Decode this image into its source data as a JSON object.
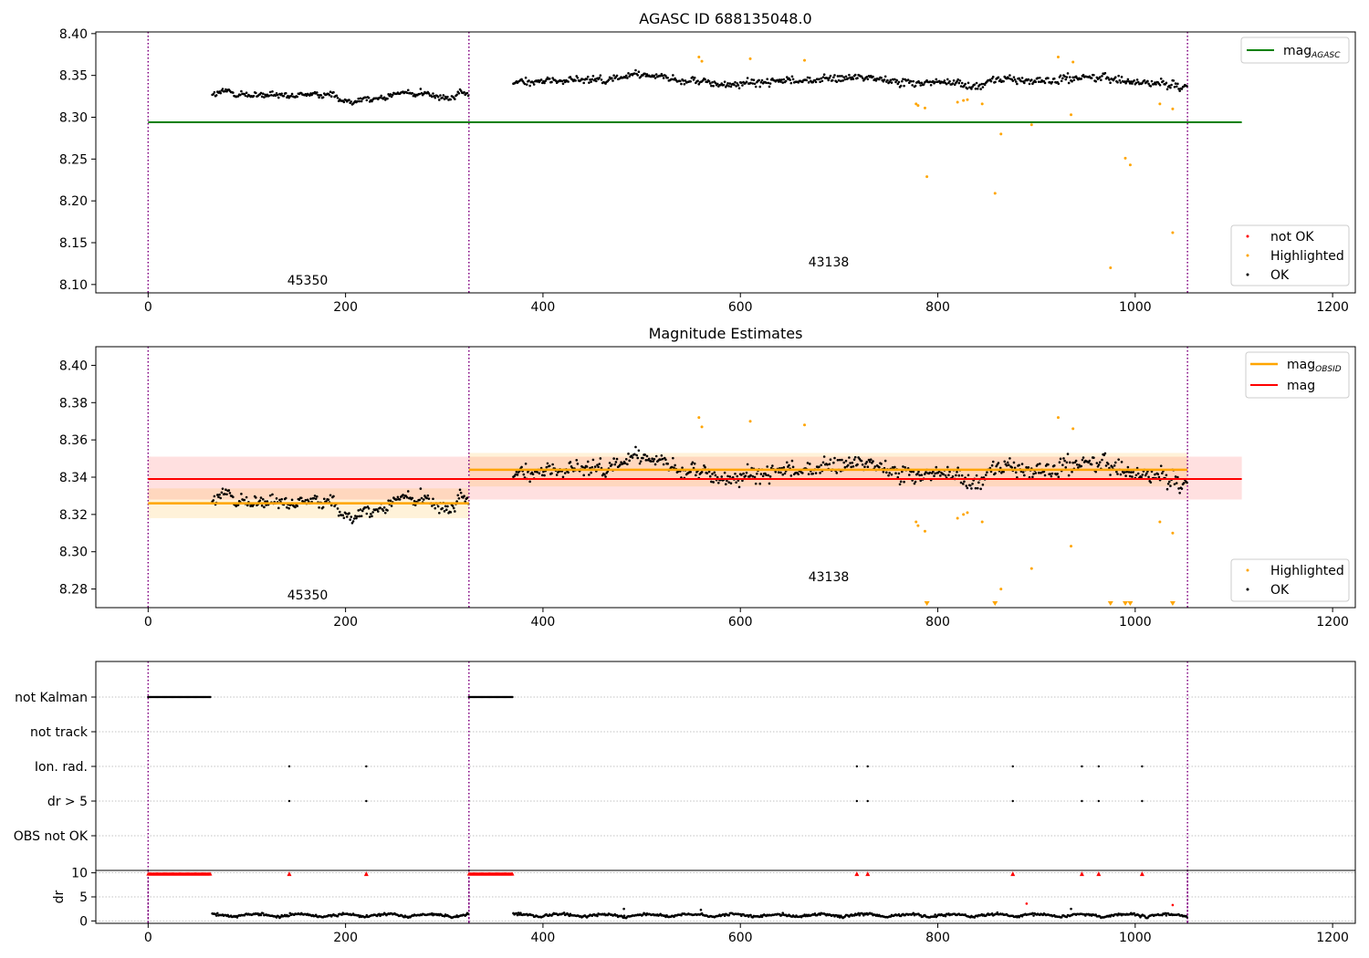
{
  "figure": {
    "top_title": "AGASC ID 688135048.0",
    "mid_title": "Magnitude Estimates"
  },
  "colors": {
    "ok": "#000000",
    "highlighted": "#ffa500",
    "not_ok": "#ff0000",
    "mag_agasc": "#008000",
    "mag_obsid": "#ffa500",
    "mag": "#ff0000",
    "obs_boundary": "#800080",
    "grid": "#b0b0b0"
  },
  "chart_data": [
    {
      "type": "scatter",
      "title": "AGASC ID 688135048.0",
      "xlim": [
        -53,
        1223
      ],
      "ylim": [
        8.09,
        8.402
      ],
      "x_ticks": [
        0,
        200,
        400,
        600,
        800,
        1000,
        1200
      ],
      "y_ticks": [
        8.1,
        8.15,
        8.2,
        8.25,
        8.3,
        8.35,
        8.4
      ],
      "y_tick_labels": [
        "8.10",
        "8.15",
        "8.20",
        "8.25",
        "8.30",
        "8.35",
        "8.40"
      ],
      "obs_boundaries": [
        0,
        325,
        1053
      ],
      "obs_labels": [
        {
          "text": "45350",
          "x": 162,
          "y": 8.105
        },
        {
          "text": "43138",
          "x": 690,
          "y": 8.126
        }
      ],
      "segments": [
        {
          "x_start": 65,
          "x_end": 325,
          "mean": 8.3255,
          "spread": 0.007
        },
        {
          "x_start": 370,
          "x_end": 1053,
          "mean": 8.344,
          "spread": 0.009
        }
      ],
      "reference_lines": [
        {
          "name": "mag$_{AGASC}$",
          "y": 8.294,
          "x_range": [
            0,
            1108
          ],
          "color": "#008000"
        }
      ],
      "highlighted": [
        [
          558,
          8.372
        ],
        [
          561,
          8.367
        ],
        [
          610,
          8.37
        ],
        [
          665,
          8.368
        ],
        [
          778,
          8.316
        ],
        [
          780,
          8.314
        ],
        [
          787,
          8.311
        ],
        [
          789,
          8.229
        ],
        [
          820,
          8.318
        ],
        [
          826,
          8.32
        ],
        [
          830,
          8.321
        ],
        [
          845,
          8.316
        ],
        [
          858,
          8.209
        ],
        [
          864,
          8.28
        ],
        [
          895,
          8.291
        ],
        [
          922,
          8.372
        ],
        [
          935,
          8.303
        ],
        [
          937,
          8.366
        ],
        [
          975,
          8.12
        ],
        [
          990,
          8.251
        ],
        [
          995,
          8.243
        ],
        [
          1025,
          8.316
        ],
        [
          1038,
          8.31
        ],
        [
          1038,
          8.162
        ]
      ],
      "series": [
        {
          "name": "not OK",
          "color": "#ff0000"
        },
        {
          "name": "Highlighted",
          "color": "#ffa500"
        },
        {
          "name": "OK",
          "color": "#000000"
        }
      ],
      "legend_placement": [
        "top-right",
        "bottom-right"
      ]
    },
    {
      "type": "scatter",
      "title": "Magnitude Estimates",
      "xlim": [
        -53,
        1223
      ],
      "ylim": [
        8.27,
        8.41
      ],
      "x_ticks": [
        0,
        200,
        400,
        600,
        800,
        1000,
        1200
      ],
      "y_ticks": [
        8.28,
        8.3,
        8.32,
        8.34,
        8.36,
        8.38,
        8.4
      ],
      "y_tick_labels": [
        "8.28",
        "8.30",
        "8.32",
        "8.34",
        "8.36",
        "8.38",
        "8.40"
      ],
      "obs_boundaries": [
        0,
        325,
        1053
      ],
      "obs_labels": [
        {
          "text": "45350",
          "x": 162,
          "y": 8.2745
        },
        {
          "text": "43138",
          "x": 690,
          "y": 8.2845
        }
      ],
      "mag": {
        "name": "mag",
        "y": 8.339,
        "band": [
          8.328,
          8.351
        ],
        "x_range": [
          0,
          1108
        ],
        "color": "#ff0000"
      },
      "mag_obsid": [
        {
          "x_range": [
            0,
            325
          ],
          "y": 8.326,
          "band": [
            8.318,
            8.334
          ]
        },
        {
          "x_range": [
            325,
            1053
          ],
          "y": 8.344,
          "band": [
            8.335,
            8.353
          ]
        }
      ],
      "clipped_highlighted_x": [
        789,
        858,
        975,
        990,
        995,
        1038
      ],
      "series": [
        {
          "name": "mag$_{OBSID}$",
          "color": "#ffa500"
        },
        {
          "name": "mag",
          "color": "#ff0000"
        },
        {
          "name": "Highlighted",
          "color": "#ffa500"
        },
        {
          "name": "OK",
          "color": "#000000"
        }
      ],
      "legend_placement": [
        "top-right",
        "bottom-right"
      ]
    },
    {
      "type": "scatter",
      "xlim": [
        -53,
        1223
      ],
      "flag_rows": [
        "not Kalman",
        "not track",
        "Ion. rad.",
        "dr > 5",
        "OBS not OK"
      ],
      "not_kalman_ranges": [
        [
          0,
          63
        ],
        [
          325,
          370
        ]
      ],
      "ion_rad_x": [
        143,
        221,
        718,
        729,
        876,
        946,
        963,
        1007
      ],
      "dr_gt_5_x": [
        143,
        221,
        718,
        729,
        876,
        946,
        963,
        1007
      ],
      "obs_boundaries": [
        0,
        325,
        1053
      ]
    },
    {
      "type": "scatter",
      "xlim": [
        -53,
        1223
      ],
      "ylim": [
        -0.5,
        10.5
      ],
      "ylabel": "dr",
      "x_ticks": [
        0,
        200,
        400,
        600,
        800,
        1000,
        1200
      ],
      "y_ticks": [
        0,
        5,
        10
      ],
      "y_tick_labels": [
        "0",
        "5",
        "10"
      ],
      "clipped_dr_ranges": [
        [
          0,
          63
        ],
        [
          325,
          370
        ]
      ],
      "clipped_dr_x": [
        143,
        221,
        718,
        729,
        876,
        946,
        963,
        1007
      ],
      "high_dr_points": [
        [
          482,
          2.5
        ],
        [
          560,
          2.3
        ],
        [
          890,
          3.6
        ],
        [
          935,
          2.5
        ],
        [
          1038,
          3.3
        ]
      ],
      "obs_boundaries": [
        0,
        325,
        1053
      ]
    }
  ],
  "legends": {
    "top_upper": [
      "mag$_{AGASC}$"
    ],
    "top_lower": [
      "not OK",
      "Highlighted",
      "OK"
    ],
    "mid_upper": [
      "mag$_{OBSID}$",
      "mag"
    ],
    "mid_lower": [
      "Highlighted",
      "OK"
    ],
    "agasc_base": "mag",
    "agasc_sub": "AGASC",
    "obsid_base": "mag",
    "obsid_sub": "OBSID",
    "mag": "mag",
    "not_ok": "not OK",
    "highlighted": "Highlighted",
    "ok": "OK"
  },
  "obs_labels": {
    "first": "45350",
    "second": "43138"
  },
  "flags_labels": {
    "not_kalman": "not Kalman",
    "not_track": "not track",
    "ion_rad": "Ion. rad.",
    "dr5": "dr > 5",
    "obs_not_ok": "OBS not OK"
  },
  "dr_axis": {
    "label": "dr"
  }
}
